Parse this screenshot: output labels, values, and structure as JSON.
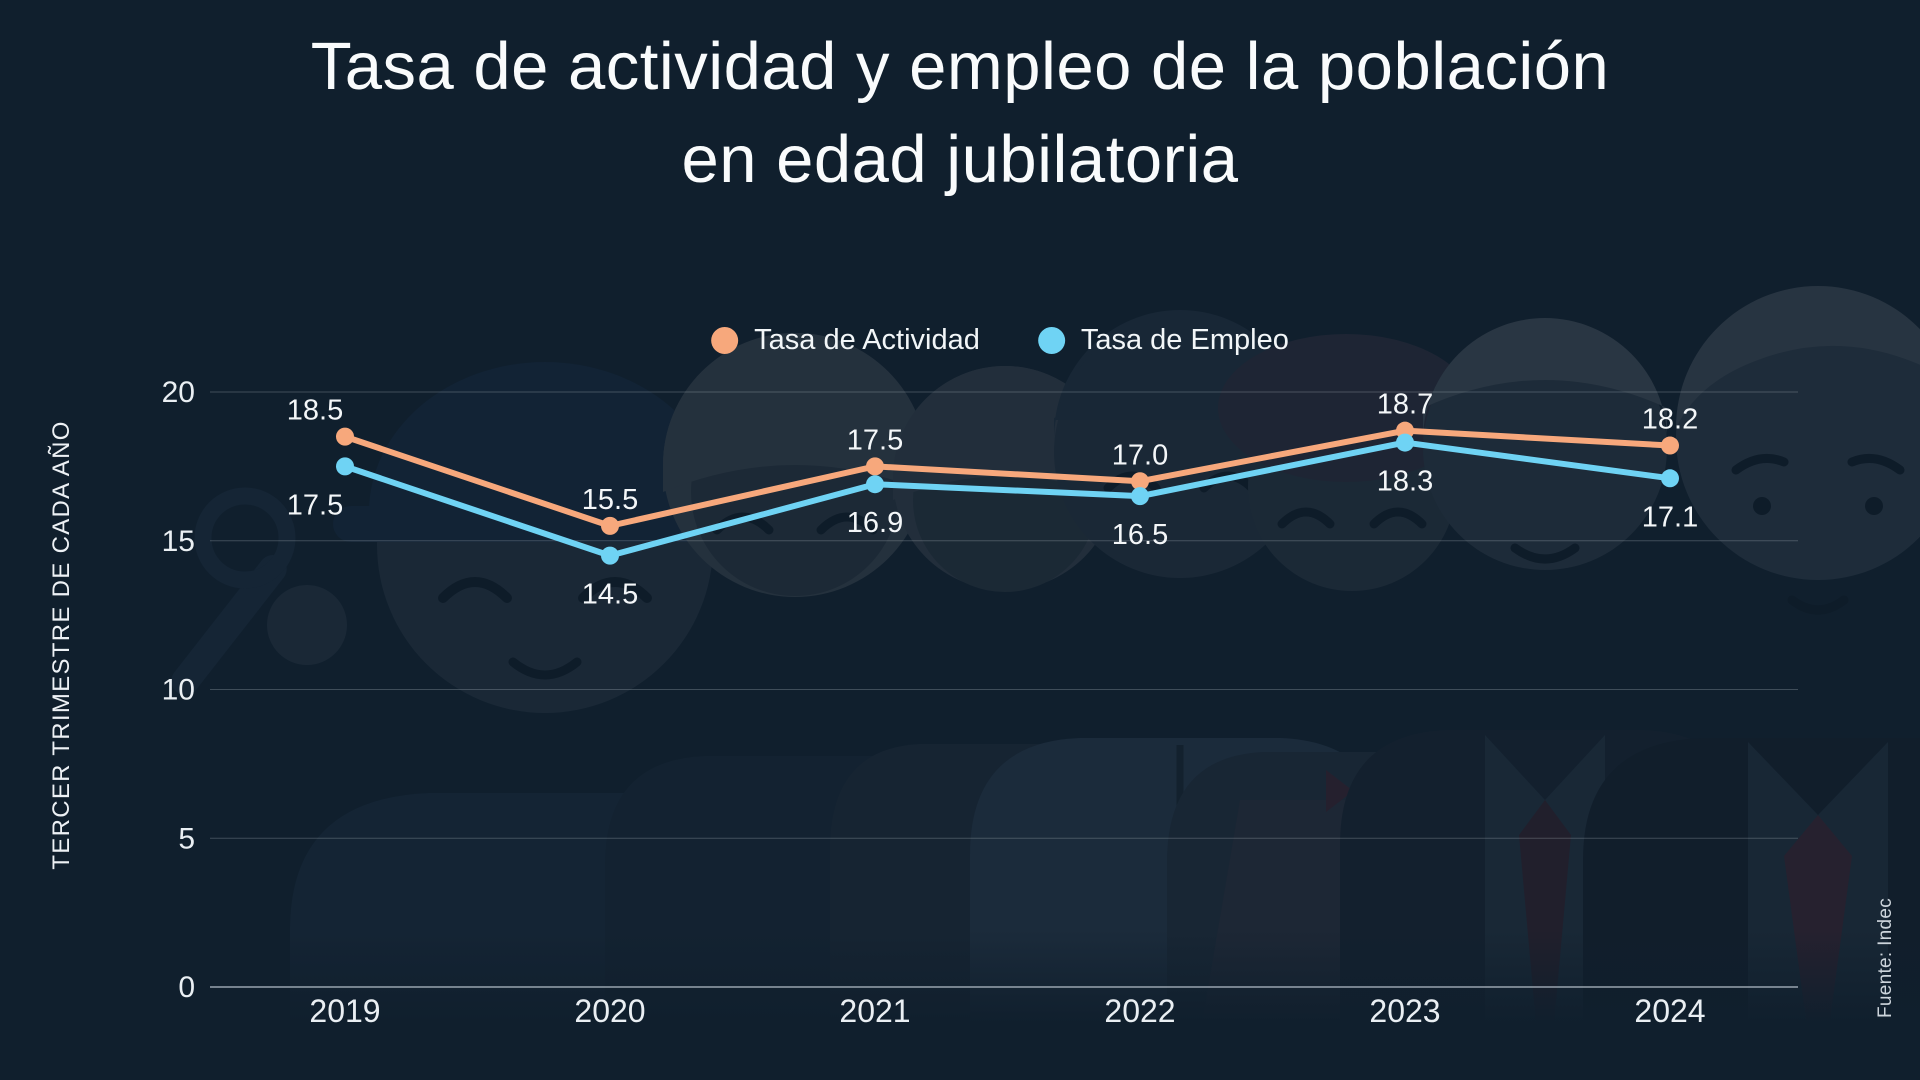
{
  "title": {
    "line1": "Tasa de actividad y empleo de la población",
    "line2": "en edad jubilatoria"
  },
  "legend": [
    {
      "label": "Tasa de Actividad",
      "color": "#f7a87c"
    },
    {
      "label": "Tasa de Empleo",
      "color": "#6fd3f4"
    }
  ],
  "source": "Fuente: Indec",
  "colors": {
    "background": "#101f2d",
    "activity": "#f7a87c",
    "employment": "#6fd3f4",
    "grid": "rgba(186,196,206,0.28)",
    "axis": "rgba(186,196,206,0.6)",
    "text": "#f4f7f9"
  },
  "chart_data": {
    "type": "line",
    "categories": [
      "2019",
      "2020",
      "2021",
      "2022",
      "2023",
      "2024"
    ],
    "series": [
      {
        "name": "Tasa de Actividad",
        "color": "#f7a87c",
        "values": [
          18.5,
          15.5,
          17.5,
          17.0,
          18.7,
          18.2
        ],
        "labels": [
          "18.5",
          "15.5",
          "17.5",
          "17.0",
          "18.7",
          "18.2"
        ]
      },
      {
        "name": "Tasa de Empleo",
        "color": "#6fd3f4",
        "values": [
          17.5,
          14.5,
          16.9,
          16.5,
          18.3,
          17.1
        ],
        "labels": [
          "17.5",
          "14.5",
          "16.9",
          "16.5",
          "18.3",
          "17.1"
        ]
      }
    ],
    "ylabel": "TERCER TRIMESTRE DE CADA AÑO",
    "ylim": [
      0,
      20
    ],
    "yticks": [
      0,
      5,
      10,
      15,
      20
    ],
    "ytick_labels": [
      "0",
      "5",
      "10",
      "15",
      "20"
    ],
    "grid": true,
    "legend_position": "top"
  }
}
